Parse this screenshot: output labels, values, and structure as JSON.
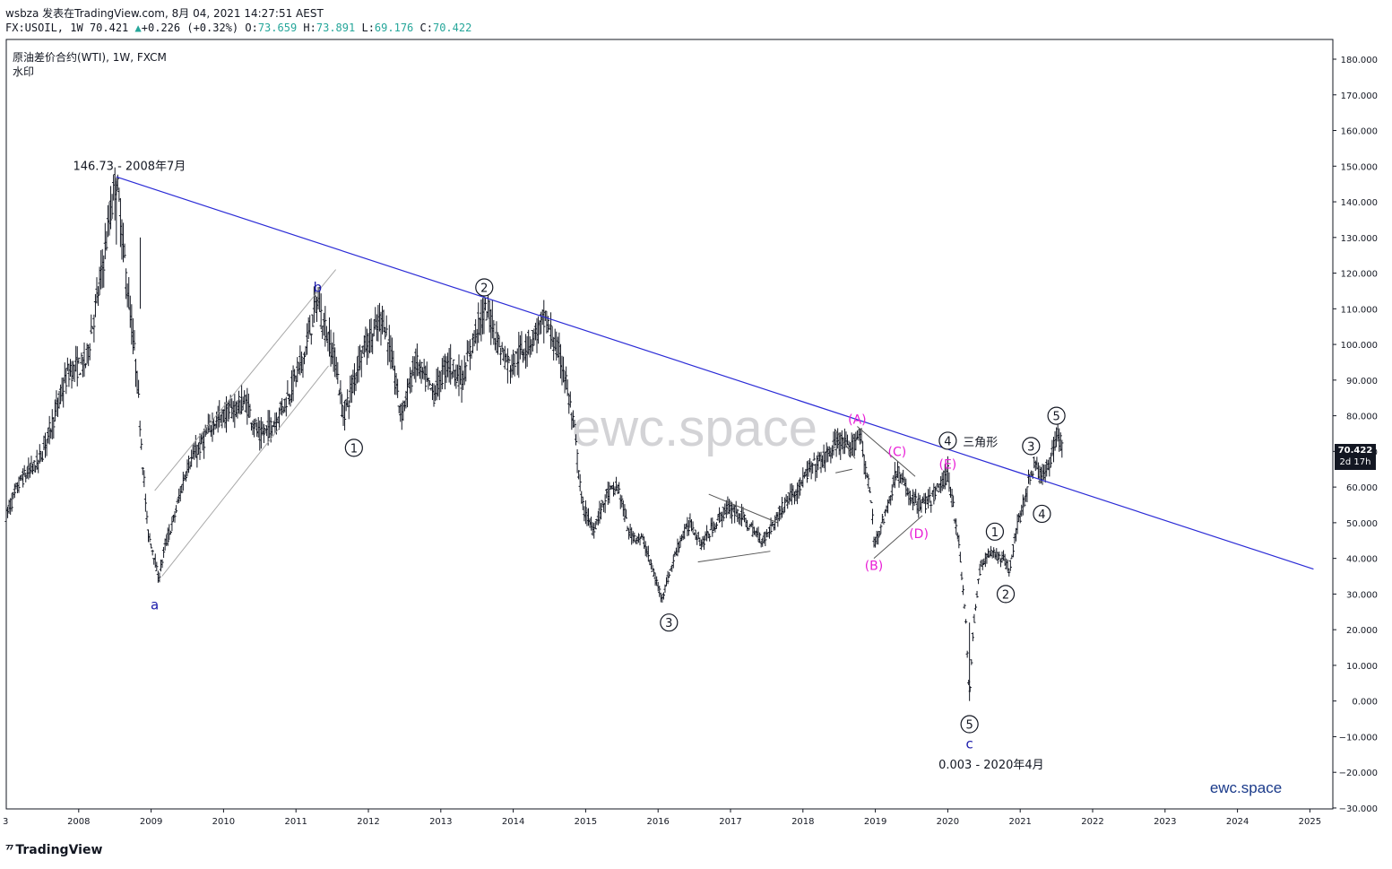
{
  "header": {
    "line1": "wsbza 发表在TradingView.com, 8月 04, 2021 14:27:51 AEST",
    "symbol": "FX:USOIL, 1W",
    "last": "70.421",
    "change": "+0.226 (+0.32%)",
    "o_label": "O:",
    "o_val": "73.659",
    "h_label": "H:",
    "h_val": "73.891",
    "l_label": "L:",
    "l_val": "69.176",
    "c_label": "C:",
    "c_val": "70.422"
  },
  "title": "原油差价合约(WTI), 1W, FXCM",
  "watermark_label": "水印",
  "watermark_text": "ewc.space",
  "brand_corner": "ewc.space",
  "footer_logo": "TradingView",
  "price_badge": {
    "value": "70.422",
    "countdown": "2d 17h"
  },
  "colors": {
    "trendline": "#2b2bd6",
    "wave_black": "#131722",
    "wave_magenta": "#e91ed6",
    "wave_blue": "#1a1aaa",
    "badge": "#131722"
  },
  "chart_data": {
    "type": "candlestick",
    "x_axis": {
      "labels": [
        "2008",
        "2009",
        "2010",
        "2011",
        "2012",
        "2013",
        "2014",
        "2015",
        "2016",
        "2017",
        "2018",
        "2019",
        "2020",
        "2021",
        "2022",
        "2023",
        "2024",
        "2025"
      ]
    },
    "y_axis": {
      "range": [
        -30,
        180
      ],
      "tick_labels": [
        "180.000",
        "170.000",
        "160.000",
        "150.000",
        "140.000",
        "130.000",
        "120.000",
        "110.000",
        "100.000",
        "90.000",
        "80.000",
        "70.000",
        "60.000",
        "50.000",
        "40.000",
        "30.000",
        "20.000",
        "10.000",
        "0.000",
        "−10.000",
        "−20.000",
        "−30.000"
      ]
    },
    "price_path": [
      [
        2007.0,
        52
      ],
      [
        2007.2,
        62
      ],
      [
        2007.45,
        67
      ],
      [
        2007.7,
        82
      ],
      [
        2007.85,
        92
      ],
      [
        2008.1,
        95
      ],
      [
        2008.3,
        118
      ],
      [
        2008.45,
        138
      ],
      [
        2008.52,
        146.73
      ],
      [
        2008.65,
        120
      ],
      [
        2008.8,
        92
      ],
      [
        2008.95,
        48
      ],
      [
        2009.05,
        40
      ],
      [
        2009.1,
        34
      ],
      [
        2009.2,
        44
      ],
      [
        2009.3,
        50
      ],
      [
        2009.5,
        66
      ],
      [
        2009.7,
        72
      ],
      [
        2009.85,
        78
      ],
      [
        2010.0,
        80
      ],
      [
        2010.3,
        84
      ],
      [
        2010.5,
        74
      ],
      [
        2010.7,
        78
      ],
      [
        2010.9,
        86
      ],
      [
        2011.1,
        96
      ],
      [
        2011.3,
        113
      ],
      [
        2011.35,
        108
      ],
      [
        2011.55,
        95
      ],
      [
        2011.65,
        80
      ],
      [
        2011.75,
        86
      ],
      [
        2011.9,
        98
      ],
      [
        2012.1,
        104
      ],
      [
        2012.2,
        108
      ],
      [
        2012.35,
        93
      ],
      [
        2012.45,
        80
      ],
      [
        2012.65,
        95
      ],
      [
        2012.9,
        86
      ],
      [
        2013.1,
        95
      ],
      [
        2013.3,
        90
      ],
      [
        2013.5,
        105
      ],
      [
        2013.65,
        110
      ],
      [
        2013.8,
        100
      ],
      [
        2013.95,
        94
      ],
      [
        2014.2,
        100
      ],
      [
        2014.45,
        107
      ],
      [
        2014.7,
        93
      ],
      [
        2014.85,
        75
      ],
      [
        2014.95,
        55
      ],
      [
        2015.1,
        48
      ],
      [
        2015.3,
        58
      ],
      [
        2015.45,
        60
      ],
      [
        2015.6,
        47
      ],
      [
        2015.8,
        45
      ],
      [
        2015.95,
        35
      ],
      [
        2016.05,
        29
      ],
      [
        2016.1,
        32
      ],
      [
        2016.3,
        45
      ],
      [
        2016.45,
        50
      ],
      [
        2016.6,
        44
      ],
      [
        2016.8,
        50
      ],
      [
        2016.95,
        54
      ],
      [
        2017.1,
        53
      ],
      [
        2017.3,
        48
      ],
      [
        2017.45,
        45
      ],
      [
        2017.6,
        50
      ],
      [
        2017.8,
        57
      ],
      [
        2017.95,
        60
      ],
      [
        2018.1,
        65
      ],
      [
        2018.3,
        68
      ],
      [
        2018.5,
        73
      ],
      [
        2018.65,
        70
      ],
      [
        2018.78,
        76
      ],
      [
        2018.95,
        55
      ],
      [
        2018.98,
        44
      ],
      [
        2019.15,
        53
      ],
      [
        2019.3,
        65
      ],
      [
        2019.45,
        58
      ],
      [
        2019.6,
        55
      ],
      [
        2019.75,
        56
      ],
      [
        2019.95,
        62
      ],
      [
        2020.0,
        64
      ],
      [
        2020.05,
        58
      ],
      [
        2020.15,
        45
      ],
      [
        2020.25,
        22
      ],
      [
        2020.3,
        0.003
      ],
      [
        2020.35,
        20
      ],
      [
        2020.45,
        38
      ],
      [
        2020.6,
        42
      ],
      [
        2020.75,
        40
      ],
      [
        2020.85,
        37
      ],
      [
        2020.95,
        48
      ],
      [
        2021.1,
        60
      ],
      [
        2021.2,
        67
      ],
      [
        2021.3,
        62
      ],
      [
        2021.45,
        70
      ],
      [
        2021.52,
        76
      ],
      [
        2021.58,
        70.42
      ]
    ],
    "trendlines": [
      {
        "name": "main",
        "from": [
          2008.52,
          147
        ],
        "to": [
          2025.05,
          37
        ]
      }
    ],
    "channel_lines": [
      {
        "from": [
          2009.05,
          59
        ],
        "to": [
          2011.55,
          121
        ]
      },
      {
        "from": [
          2009.15,
          35
        ],
        "to": [
          2011.45,
          94
        ]
      }
    ],
    "triangle_lines": [
      {
        "from": [
          2016.7,
          58
        ],
        "to": [
          2017.65,
          50
        ]
      },
      {
        "from": [
          2016.55,
          39
        ],
        "to": [
          2017.55,
          42
        ]
      },
      {
        "from": [
          2018.45,
          76
        ],
        "to": [
          2018.72,
          68
        ]
      },
      {
        "from": [
          2018.45,
          64
        ],
        "to": [
          2018.68,
          65
        ]
      },
      {
        "from": [
          2018.75,
          77
        ],
        "to": [
          2019.55,
          63
        ]
      },
      {
        "from": [
          2018.98,
          40
        ],
        "to": [
          2019.65,
          52
        ]
      }
    ],
    "annotations": [
      {
        "text": "146.73 - 2008年7月",
        "x": 2008.7,
        "y": 150
      },
      {
        "text": "0.003 - 2020年4月",
        "x": 2020.6,
        "y": -18
      },
      {
        "text": "三角形",
        "x": 2020.45,
        "y": 72.5
      }
    ],
    "wave_labels_circled": [
      {
        "text": "1",
        "x": 2011.8,
        "y": 71
      },
      {
        "text": "2",
        "x": 2013.6,
        "y": 116
      },
      {
        "text": "3",
        "x": 2016.15,
        "y": 22
      },
      {
        "text": "4",
        "x": 2020.0,
        "y": 73
      },
      {
        "text": "5",
        "x": 2020.3,
        "y": -6.5
      },
      {
        "text": "1",
        "x": 2020.65,
        "y": 47.5
      },
      {
        "text": "2",
        "x": 2020.8,
        "y": 30
      },
      {
        "text": "3",
        "x": 2021.15,
        "y": 71.5
      },
      {
        "text": "4",
        "x": 2021.3,
        "y": 52.5
      },
      {
        "text": "5",
        "x": 2021.5,
        "y": 80
      }
    ],
    "wave_labels_magenta": [
      {
        "text": "(A)",
        "x": 2018.75,
        "y": 79
      },
      {
        "text": "(B)",
        "x": 2018.98,
        "y": 38
      },
      {
        "text": "(C)",
        "x": 2019.3,
        "y": 70
      },
      {
        "text": "(D)",
        "x": 2019.6,
        "y": 47
      },
      {
        "text": "(E)",
        "x": 2020.0,
        "y": 66.5
      }
    ],
    "wave_labels_blue": [
      {
        "text": "a",
        "x": 2009.05,
        "y": 27
      },
      {
        "text": "b",
        "x": 2011.3,
        "y": 116
      },
      {
        "text": "c",
        "x": 2020.3,
        "y": -12
      }
    ],
    "last_price": 70.422
  }
}
